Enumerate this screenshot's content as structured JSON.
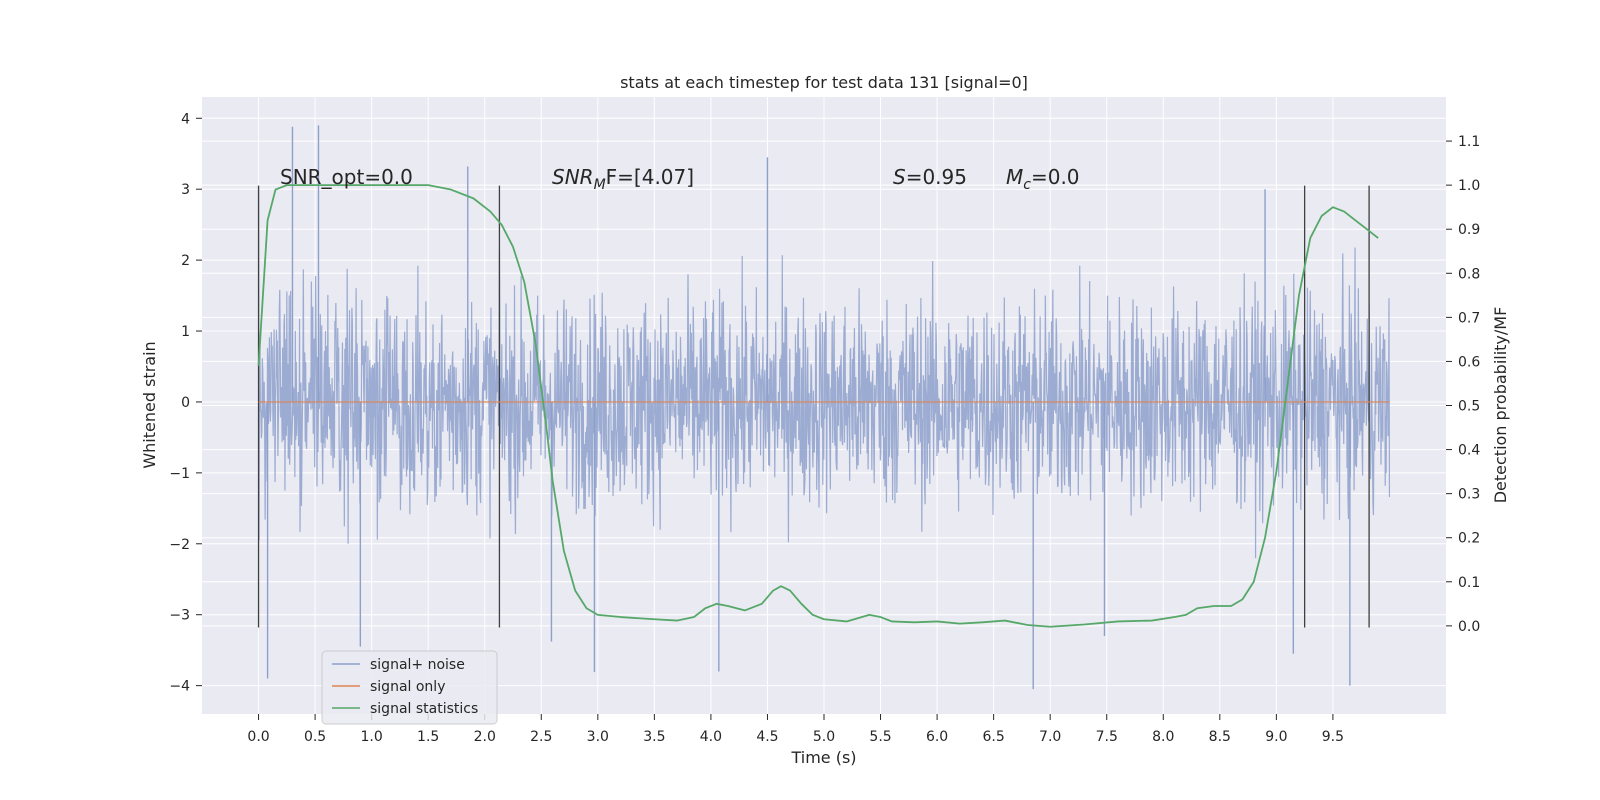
{
  "chart_data": {
    "type": "line",
    "title": "stats at each timestep for test data 131 [signal=0]",
    "xlabel": "Time (s)",
    "ylabel": "Whitened strain",
    "ylabel_right": "Detection probability/MF",
    "xlim": [
      -0.5,
      10.5
    ],
    "ylim": [
      -4.4,
      4.3
    ],
    "ylim_right": [
      -0.2,
      1.2
    ],
    "x_ticks": [
      "0.0",
      "0.5",
      "1.0",
      "1.5",
      "2.0",
      "2.5",
      "3.0",
      "3.5",
      "4.0",
      "4.5",
      "5.0",
      "5.5",
      "6.0",
      "6.5",
      "7.0",
      "7.5",
      "8.0",
      "8.5",
      "9.0",
      "9.5"
    ],
    "y_ticks": [
      "4",
      "3",
      "2",
      "1",
      "0",
      "−1",
      "−2",
      "−3",
      "−4"
    ],
    "y_ticks_right": [
      "1.1",
      "1.0",
      "0.9",
      "0.8",
      "0.7",
      "0.6",
      "0.5",
      "0.4",
      "0.3",
      "0.2",
      "0.1",
      "0.0"
    ],
    "grid": true,
    "legend_position": "lower-left",
    "colors": {
      "background": "#eaeaf2",
      "grid": "#ffffff",
      "signal_noise": "#8da0cb",
      "signal_only": "#dd8452",
      "signal_statistics": "#55a868",
      "vlines": "#404040"
    },
    "annotations": {
      "snr_opt": "SNR_opt=0.0",
      "snr_mf_base": "SNR",
      "snr_mf_sub": "M",
      "snr_mf_rest": "F=[4.07]",
      "s_var": "S",
      "s_value": "=0.95",
      "mc_base": "M",
      "mc_sub": "c",
      "mc_value": "=0.0"
    },
    "vertical_lines_x": [
      0.0,
      2.13,
      9.25,
      9.82
    ],
    "series": [
      {
        "name": "signal+ noise",
        "axis": "left",
        "style": "dense noise, approx ±2.5 whitened strain, peaks near ±3.9",
        "x_range": [
          0.0,
          10.0
        ],
        "envelope": [
          -2.5,
          2.5
        ],
        "peaks": [
          [
            0.3,
            3.88
          ],
          [
            0.53,
            3.9
          ],
          [
            0.08,
            -3.9
          ],
          [
            0.9,
            -3.45
          ],
          [
            2.59,
            -3.38
          ],
          [
            2.97,
            -3.81
          ],
          [
            4.07,
            -3.8
          ],
          [
            4.5,
            3.45
          ],
          [
            6.85,
            -4.05
          ],
          [
            7.48,
            -3.3
          ],
          [
            9.15,
            -3.55
          ],
          [
            9.65,
            -4.0
          ],
          [
            1.85,
            3.32
          ],
          [
            8.9,
            3.0
          ]
        ]
      },
      {
        "name": "signal only",
        "axis": "left",
        "x": [
          0.0,
          10.0
        ],
        "y": [
          0.0,
          0.0
        ]
      },
      {
        "name": "signal statistics",
        "axis": "right",
        "x": [
          0.0,
          0.08,
          0.15,
          0.25,
          0.5,
          1.0,
          1.5,
          1.7,
          1.9,
          2.05,
          2.15,
          2.25,
          2.35,
          2.45,
          2.55,
          2.6,
          2.7,
          2.8,
          2.9,
          3.0,
          3.2,
          3.5,
          3.7,
          3.85,
          3.95,
          4.05,
          4.15,
          4.3,
          4.45,
          4.55,
          4.62,
          4.7,
          4.8,
          4.9,
          5.0,
          5.2,
          5.4,
          5.5,
          5.6,
          5.8,
          6.0,
          6.2,
          6.4,
          6.6,
          6.8,
          7.0,
          7.3,
          7.6,
          7.9,
          8.1,
          8.2,
          8.3,
          8.45,
          8.6,
          8.7,
          8.8,
          8.9,
          9.0,
          9.1,
          9.2,
          9.3,
          9.4,
          9.5,
          9.6,
          9.7,
          9.8,
          9.9
        ],
        "y": [
          0.59,
          0.92,
          0.99,
          1.0,
          1.0,
          1.0,
          1.0,
          0.99,
          0.97,
          0.94,
          0.91,
          0.86,
          0.78,
          0.64,
          0.44,
          0.33,
          0.17,
          0.08,
          0.04,
          0.025,
          0.02,
          0.015,
          0.012,
          0.02,
          0.04,
          0.05,
          0.045,
          0.035,
          0.05,
          0.08,
          0.09,
          0.08,
          0.05,
          0.025,
          0.015,
          0.01,
          0.025,
          0.02,
          0.01,
          0.008,
          0.01,
          0.005,
          0.008,
          0.012,
          0.002,
          -0.002,
          0.003,
          0.01,
          0.012,
          0.02,
          0.025,
          0.04,
          0.045,
          0.045,
          0.06,
          0.1,
          0.2,
          0.35,
          0.55,
          0.75,
          0.88,
          0.93,
          0.95,
          0.94,
          0.92,
          0.9,
          0.88
        ]
      }
    ]
  }
}
